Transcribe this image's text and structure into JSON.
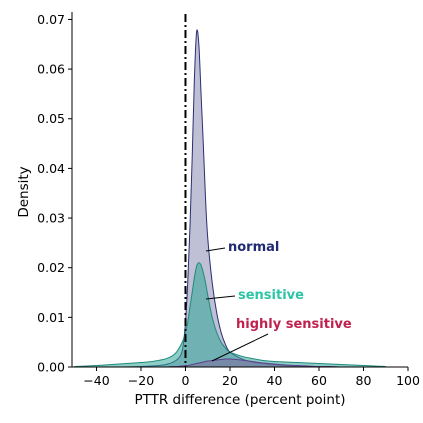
{
  "chart_data": {
    "type": "area",
    "title": "",
    "xlabel": "PTTR difference (percent point)",
    "ylabel": "Density",
    "xlim": [
      -51,
      100
    ],
    "ylim": [
      0,
      0.0715
    ],
    "xticks": [
      -40,
      -20,
      0,
      20,
      40,
      60,
      80,
      100
    ],
    "xtick_labels": [
      "−40",
      "−20",
      "0",
      "20",
      "40",
      "60",
      "80",
      "100"
    ],
    "yticks": [
      0.0,
      0.01,
      0.02,
      0.03,
      0.04,
      0.05,
      0.06,
      0.07
    ],
    "ytick_labels": [
      "0.00",
      "0.01",
      "0.02",
      "0.03",
      "0.04",
      "0.05",
      "0.06",
      "0.07"
    ],
    "vline": {
      "x": 0,
      "style": "dash-dot",
      "color": "#000000"
    },
    "grid": false,
    "x": [
      -50,
      -40,
      -30,
      -20,
      -15,
      -10,
      -8,
      -6,
      -4,
      -2,
      -1,
      0,
      1,
      2,
      3,
      4,
      5,
      6,
      7,
      8,
      9,
      10,
      12,
      14,
      16,
      18,
      20,
      25,
      30,
      35,
      40,
      45,
      50,
      55,
      60,
      65,
      70,
      75,
      80,
      85,
      90
    ],
    "series": [
      {
        "name": "normal",
        "fill_color": "#8a8ab3",
        "line_color": "#2b2f73",
        "label_color": "#1f2a70",
        "values": [
          0,
          0,
          0,
          0.0001,
          0.0002,
          0.0004,
          0.0006,
          0.0009,
          0.0014,
          0.0025,
          0.0045,
          0.009,
          0.017,
          0.028,
          0.042,
          0.058,
          0.0675,
          0.065,
          0.055,
          0.045,
          0.034,
          0.026,
          0.017,
          0.011,
          0.007,
          0.0045,
          0.003,
          0.0017,
          0.001,
          0.0007,
          0.0005,
          0.0003,
          0.0002,
          0.0001,
          0.0001,
          0,
          0,
          0,
          0,
          0,
          0
        ]
      },
      {
        "name": "sensitive",
        "fill_color": "#2fa898",
        "line_color": "#1f8a7c",
        "label_color": "#2ec4a6",
        "values": [
          0.0001,
          0.0003,
          0.0006,
          0.0009,
          0.0011,
          0.0015,
          0.0018,
          0.0022,
          0.003,
          0.0045,
          0.0055,
          0.007,
          0.009,
          0.012,
          0.015,
          0.018,
          0.0203,
          0.021,
          0.0205,
          0.019,
          0.017,
          0.0145,
          0.01,
          0.007,
          0.005,
          0.0038,
          0.003,
          0.0022,
          0.0017,
          0.0013,
          0.0011,
          0.001,
          0.0009,
          0.0008,
          0.0007,
          0.0006,
          0.0005,
          0.0004,
          0.0003,
          0.0002,
          0.0001
        ]
      },
      {
        "name": "highly sensitive",
        "fill_color": "#7d6ba0",
        "line_color": "#5e3f8c",
        "label_color": "#c0224f",
        "values": [
          0,
          0,
          0,
          0,
          0,
          0,
          0,
          0.0001,
          0.0001,
          0.0002,
          0.0002,
          0.0003,
          0.0003,
          0.0004,
          0.0005,
          0.0006,
          0.0007,
          0.0008,
          0.0009,
          0.001,
          0.0011,
          0.0012,
          0.0013,
          0.0014,
          0.0015,
          0.0016,
          0.0016,
          0.0014,
          0.0011,
          0.0008,
          0.0006,
          0.0004,
          0.0003,
          0.0002,
          0.0001,
          0.0001,
          0,
          0,
          0,
          0,
          0
        ]
      }
    ],
    "annotations": [
      {
        "text": "normal",
        "series": "normal"
      },
      {
        "text": "sensitive",
        "series": "sensitive"
      },
      {
        "text": "highly sensitive",
        "series": "highly sensitive"
      }
    ]
  }
}
